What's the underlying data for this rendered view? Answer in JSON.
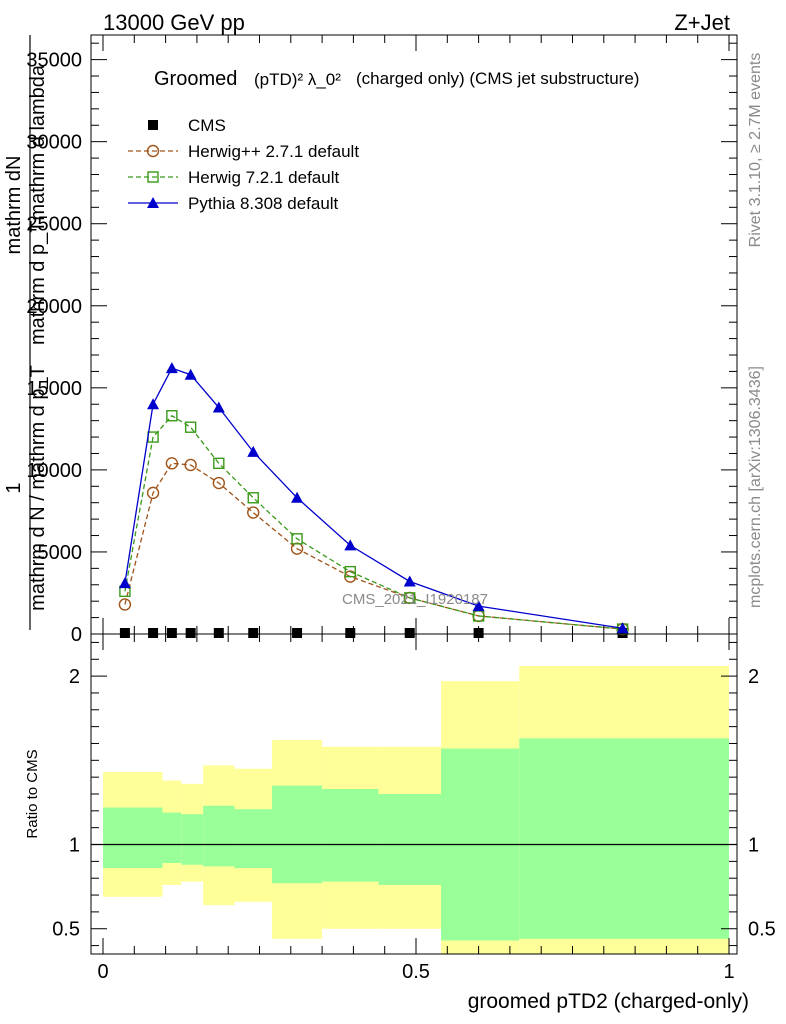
{
  "header": {
    "left": "13000 GeV pp",
    "right": "Z+Jet"
  },
  "side_labels": {
    "rivet": "Rivet 3.1.10, ≥ 2.7M events",
    "mcplots": "mcplots.cern.ch [arXiv:1306.3436]"
  },
  "chart_data": [
    {
      "type": "line",
      "panel": "main",
      "title_prefix": "Groomed",
      "title_formula": "(pTD)² λ_0²",
      "title_suffix": "(charged only) (CMS jet substructure)",
      "ylabel_upper": "mathrm dN",
      "ylabel_upper2": "mathrm d p_Tmathrm d lambda",
      "ylabel_one": "1",
      "ylabel_lower": "mathrm d N / mathrm d p_T",
      "watermark": "CMS_2021_I1920187",
      "xlim": [
        0,
        1
      ],
      "ylim": [
        0,
        36500
      ],
      "yticks": [
        0,
        5000,
        10000,
        15000,
        20000,
        25000,
        30000,
        35000
      ],
      "ytick_labels": [
        "0",
        "5000",
        "10000",
        "15000",
        "20000",
        "25000",
        "30000",
        "35000"
      ],
      "legend_position": "top-left",
      "x": [
        0.035,
        0.08,
        0.11,
        0.14,
        0.185,
        0.24,
        0.31,
        0.395,
        0.49,
        0.6,
        0.83
      ],
      "series": [
        {
          "name": "CMS",
          "marker": "square-filled",
          "color": "#000000",
          "values": [
            0,
            0,
            0,
            0,
            0,
            0,
            0,
            0,
            0,
            0,
            0
          ]
        },
        {
          "name": "Herwig++ 2.7.1 default",
          "marker": "circle-open",
          "color": "#a0541a",
          "dash": true,
          "values": [
            1800,
            8600,
            10400,
            10300,
            9200,
            7400,
            5200,
            3500,
            2200,
            1100,
            300
          ]
        },
        {
          "name": "Herwig 7.2.1 default",
          "marker": "square-open",
          "color": "#3a9a1a",
          "dash": true,
          "values": [
            2600,
            12000,
            13300,
            12600,
            10400,
            8300,
            5800,
            3800,
            2200,
            1100,
            300
          ]
        },
        {
          "name": "Pythia 8.308 default",
          "marker": "triangle-filled",
          "color": "#0000cc",
          "dash": false,
          "values": [
            3100,
            14000,
            16200,
            15800,
            13800,
            11100,
            8300,
            5400,
            3200,
            1700,
            350
          ]
        }
      ]
    },
    {
      "type": "area",
      "panel": "ratio",
      "ylabel": "Ratio to CMS",
      "xlabel": "groomed pTD2 (charged-only)",
      "xlim": [
        0,
        1
      ],
      "ylim": [
        0.35,
        2.25
      ],
      "xticks": [
        0,
        0.5,
        1
      ],
      "xtick_labels": [
        "0",
        "0.5",
        "1"
      ],
      "yticks": [
        0.5,
        1,
        2
      ],
      "ytick_labels": [
        "0.5",
        "1",
        "2"
      ],
      "reference_line": 1,
      "bins": [
        {
          "x0": 0.0,
          "x1": 0.095,
          "inner": [
            0.86,
            1.22
          ],
          "outer": [
            0.69,
            1.43
          ]
        },
        {
          "x0": 0.095,
          "x1": 0.125,
          "inner": [
            0.89,
            1.19
          ],
          "outer": [
            0.76,
            1.38
          ]
        },
        {
          "x0": 0.125,
          "x1": 0.16,
          "inner": [
            0.88,
            1.18
          ],
          "outer": [
            0.78,
            1.36
          ]
        },
        {
          "x0": 0.16,
          "x1": 0.21,
          "inner": [
            0.87,
            1.23
          ],
          "outer": [
            0.64,
            1.47
          ]
        },
        {
          "x0": 0.21,
          "x1": 0.27,
          "inner": [
            0.86,
            1.21
          ],
          "outer": [
            0.66,
            1.45
          ]
        },
        {
          "x0": 0.27,
          "x1": 0.35,
          "inner": [
            0.77,
            1.35
          ],
          "outer": [
            0.44,
            1.62
          ]
        },
        {
          "x0": 0.35,
          "x1": 0.44,
          "inner": [
            0.78,
            1.33
          ],
          "outer": [
            0.5,
            1.58
          ]
        },
        {
          "x0": 0.44,
          "x1": 0.54,
          "inner": [
            0.76,
            1.3
          ],
          "outer": [
            0.5,
            1.58
          ]
        },
        {
          "x0": 0.54,
          "x1": 0.665,
          "inner": [
            0.43,
            1.57
          ],
          "outer": [
            0.35,
            1.97
          ]
        },
        {
          "x0": 0.665,
          "x1": 1.0,
          "inner": [
            0.44,
            1.63
          ],
          "outer": [
            0.35,
            2.06
          ]
        }
      ]
    }
  ]
}
